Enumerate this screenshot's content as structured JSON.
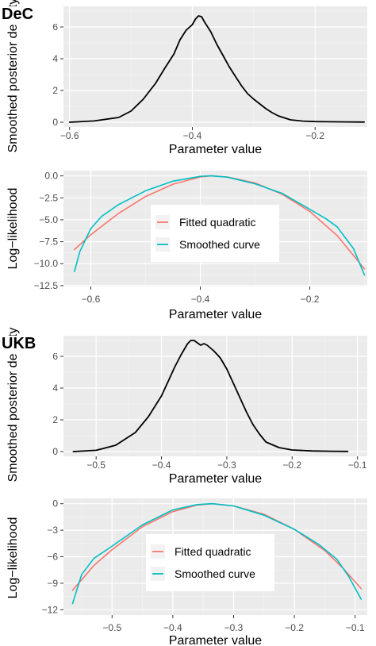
{
  "chart_data": [
    {
      "type": "line",
      "panel_tag": "DeC",
      "xlabel": "Parameter value",
      "ylabel": "Smoothed posterior density",
      "xlim": [
        -0.61,
        -0.115
      ],
      "ylim": [
        -0.3,
        7.3
      ],
      "x_ticks": [
        -0.6,
        -0.4,
        -0.2
      ],
      "x_tick_labels": [
        "−0.6",
        "−0.4",
        "−0.2"
      ],
      "y_ticks": [
        0,
        2,
        4,
        6
      ],
      "y_tick_labels": [
        "0",
        "2",
        "4",
        "6"
      ],
      "grid": true,
      "series": [
        {
          "color": "#000000",
          "x": [
            -0.6,
            -0.56,
            -0.52,
            -0.5,
            -0.48,
            -0.46,
            -0.445,
            -0.43,
            -0.42,
            -0.41,
            -0.4,
            -0.395,
            -0.39,
            -0.385,
            -0.38,
            -0.37,
            -0.36,
            -0.35,
            -0.34,
            -0.33,
            -0.32,
            -0.31,
            -0.3,
            -0.29,
            -0.28,
            -0.27,
            -0.26,
            -0.24,
            -0.22,
            -0.2,
            -0.18,
            -0.15,
            -0.12
          ],
          "y": [
            0.0,
            0.08,
            0.3,
            0.7,
            1.45,
            2.45,
            3.4,
            4.3,
            5.2,
            5.8,
            6.15,
            6.5,
            6.7,
            6.65,
            6.3,
            5.7,
            4.9,
            4.2,
            3.5,
            2.9,
            2.3,
            1.8,
            1.45,
            1.15,
            0.85,
            0.6,
            0.4,
            0.15,
            0.07,
            0.04,
            0.03,
            0.02,
            0.01
          ]
        }
      ]
    },
    {
      "type": "line",
      "xlabel": "Parameter value",
      "ylabel": "Log−likelihood",
      "xlim": [
        -0.65,
        -0.095
      ],
      "ylim": [
        -12.6,
        0.6
      ],
      "x_ticks": [
        -0.6,
        -0.4,
        -0.2
      ],
      "x_tick_labels": [
        "−0.6",
        "−0.4",
        "−0.2"
      ],
      "y_ticks": [
        0,
        -2.5,
        -5,
        -7.5,
        -10,
        -12.5
      ],
      "y_tick_labels": [
        "0.0",
        "−2.5",
        "−5.0",
        "−7.5",
        "−10.0",
        "−12.5"
      ],
      "grid": true,
      "legend": "inside-center",
      "series": [
        {
          "name": "Fitted quadratic",
          "color": "#F8766D",
          "x": [
            -0.63,
            -0.6,
            -0.55,
            -0.5,
            -0.45,
            -0.4,
            -0.38,
            -0.35,
            -0.3,
            -0.25,
            -0.2,
            -0.15,
            -0.1
          ],
          "y": [
            -8.4,
            -6.7,
            -4.3,
            -2.35,
            -0.95,
            -0.12,
            0.0,
            -0.12,
            -0.8,
            -2.1,
            -4.05,
            -6.8,
            -10.6
          ]
        },
        {
          "name": "Smoothed curve",
          "color": "#00BFC4",
          "x": [
            -0.63,
            -0.62,
            -0.6,
            -0.58,
            -0.55,
            -0.5,
            -0.45,
            -0.4,
            -0.38,
            -0.35,
            -0.3,
            -0.25,
            -0.2,
            -0.17,
            -0.15,
            -0.12,
            -0.1
          ],
          "y": [
            -10.9,
            -8.6,
            -6.0,
            -4.6,
            -3.3,
            -1.7,
            -0.6,
            -0.05,
            0.0,
            -0.15,
            -0.9,
            -2.0,
            -3.8,
            -4.9,
            -5.8,
            -8.3,
            -11.3
          ]
        }
      ]
    },
    {
      "type": "line",
      "panel_tag": "UKB",
      "xlabel": "Parameter value",
      "ylabel": "Smoothed posterior density",
      "xlim": [
        -0.55,
        -0.085
      ],
      "ylim": [
        -0.3,
        7.3
      ],
      "x_ticks": [
        -0.5,
        -0.4,
        -0.3,
        -0.2,
        -0.1
      ],
      "x_tick_labels": [
        "−0.5",
        "−0.4",
        "−0.3",
        "−0.2",
        "−0.1"
      ],
      "y_ticks": [
        0,
        2,
        4,
        6
      ],
      "y_tick_labels": [
        "0",
        "2",
        "4",
        "6"
      ],
      "grid": true,
      "series": [
        {
          "color": "#000000",
          "x": [
            -0.535,
            -0.5,
            -0.47,
            -0.44,
            -0.42,
            -0.4,
            -0.39,
            -0.38,
            -0.37,
            -0.36,
            -0.355,
            -0.35,
            -0.345,
            -0.34,
            -0.335,
            -0.33,
            -0.32,
            -0.31,
            -0.3,
            -0.29,
            -0.28,
            -0.27,
            -0.26,
            -0.25,
            -0.24,
            -0.22,
            -0.2,
            -0.17,
            -0.14,
            -0.115
          ],
          "y": [
            0.0,
            0.08,
            0.4,
            1.2,
            2.2,
            3.5,
            4.4,
            5.3,
            6.1,
            6.8,
            7.0,
            7.0,
            6.85,
            6.7,
            6.8,
            6.7,
            6.35,
            5.9,
            5.2,
            4.3,
            3.4,
            2.5,
            1.7,
            1.1,
            0.6,
            0.25,
            0.1,
            0.04,
            0.02,
            0.01
          ]
        }
      ]
    },
    {
      "type": "line",
      "xlabel": "Parameter value",
      "ylabel": "Log−likelihood",
      "xlim": [
        -0.58,
        -0.08
      ],
      "ylim": [
        -12.6,
        0.6
      ],
      "x_ticks": [
        -0.5,
        -0.4,
        -0.3,
        -0.2,
        -0.1
      ],
      "x_tick_labels": [
        "−0.5",
        "−0.4",
        "−0.3",
        "−0.2",
        "−0.1"
      ],
      "y_ticks": [
        0,
        -3,
        -6,
        -9,
        -12
      ],
      "y_tick_labels": [
        "0",
        "−3",
        "−6",
        "−9",
        "−12"
      ],
      "grid": true,
      "legend": "inside-center",
      "series": [
        {
          "name": "Fitted quadratic",
          "color": "#F8766D",
          "x": [
            -0.565,
            -0.53,
            -0.5,
            -0.45,
            -0.4,
            -0.36,
            -0.335,
            -0.3,
            -0.25,
            -0.2,
            -0.15,
            -0.12,
            -0.09
          ],
          "y": [
            -9.8,
            -7.0,
            -5.2,
            -2.6,
            -0.9,
            -0.15,
            0.0,
            -0.25,
            -1.2,
            -2.9,
            -5.3,
            -7.3,
            -9.6
          ]
        },
        {
          "name": "Smoothed curve",
          "color": "#00BFC4",
          "x": [
            -0.565,
            -0.55,
            -0.53,
            -0.5,
            -0.45,
            -0.4,
            -0.36,
            -0.335,
            -0.3,
            -0.25,
            -0.2,
            -0.16,
            -0.13,
            -0.11,
            -0.09
          ],
          "y": [
            -11.3,
            -8.0,
            -6.2,
            -4.8,
            -2.4,
            -0.7,
            -0.1,
            0.0,
            -0.25,
            -1.3,
            -2.9,
            -4.6,
            -6.3,
            -8.3,
            -10.8
          ]
        }
      ]
    }
  ]
}
